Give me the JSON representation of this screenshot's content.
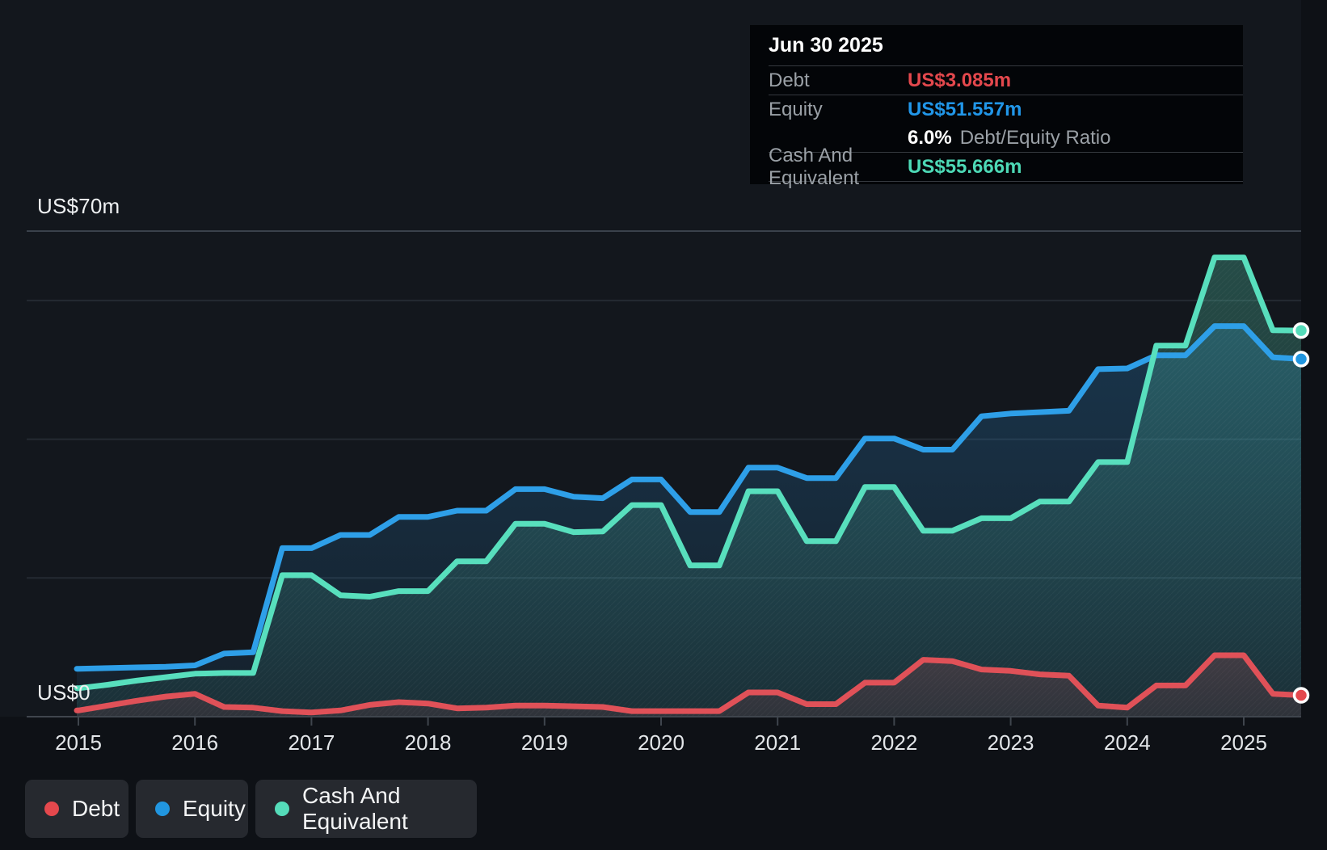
{
  "y_axis": {
    "top_label": "US$70m",
    "bottom_label": "US$0"
  },
  "tooltip": {
    "date": "Jun 30 2025",
    "debt_label": "Debt",
    "debt_value": "US$3.085m",
    "equity_label": "Equity",
    "equity_value": "US$51.557m",
    "ratio_value": "6.0%",
    "ratio_label": "Debt/Equity Ratio",
    "cash_label": "Cash And Equivalent",
    "cash_value": "US$55.666m"
  },
  "legend": {
    "debt_label": "Debt",
    "equity_label": "Equity",
    "cash_label": "Cash And Equivalent"
  },
  "colors": {
    "debt_line": "#e05158",
    "equity_line": "#2e9fe8",
    "cash_line": "#58dfbd",
    "debt_dot": "#e4484d",
    "equity_dot": "#2196e0",
    "cash_dot": "#55dcba",
    "grid_minor": "#242a32",
    "grid_top": "#3a414b",
    "axis": "#3f454d",
    "tick_label": "#e3e6e9"
  },
  "chart_data": {
    "type": "area",
    "title": "Debt to Equity history (US$ millions)",
    "x_unit": "year (quarterly samples, 2015.0 = Jan 2015, last point Jun 30 2025)",
    "ylim": [
      0,
      70
    ],
    "y_gridlines": [
      20,
      40,
      60,
      70
    ],
    "grid": true,
    "legend_position": "bottom-left",
    "x_ticks": [
      2015,
      2016,
      2017,
      2018,
      2019,
      2020,
      2021,
      2022,
      2023,
      2024,
      2025
    ],
    "x": [
      2015.0,
      2015.25,
      2015.5,
      2015.75,
      2016.0,
      2016.25,
      2016.5,
      2016.75,
      2017.0,
      2017.25,
      2017.5,
      2017.75,
      2018.0,
      2018.25,
      2018.5,
      2018.75,
      2019.0,
      2019.25,
      2019.5,
      2019.75,
      2020.0,
      2020.25,
      2020.5,
      2020.75,
      2021.0,
      2021.25,
      2021.5,
      2021.75,
      2022.0,
      2022.25,
      2022.5,
      2022.75,
      2023.0,
      2023.25,
      2023.5,
      2023.75,
      2024.0,
      2024.25,
      2024.5,
      2024.75,
      2025.0,
      2025.25,
      2025.5
    ],
    "series": [
      {
        "name": "Equity",
        "values": [
          6.9,
          7.0,
          7.1,
          7.2,
          7.4,
          9.1,
          9.3,
          24.3,
          24.3,
          26.2,
          26.2,
          28.8,
          28.8,
          29.7,
          29.7,
          32.8,
          32.8,
          31.7,
          31.5,
          34.2,
          34.2,
          29.5,
          29.5,
          35.9,
          35.9,
          34.4,
          34.4,
          40.1,
          40.1,
          38.5,
          38.5,
          43.3,
          43.7,
          43.9,
          44.1,
          50.1,
          50.2,
          52.1,
          52.1,
          56.3,
          56.3,
          51.8,
          51.557
        ]
      },
      {
        "name": "Cash And Equivalent",
        "values": [
          4.1,
          4.6,
          5.2,
          5.7,
          6.2,
          6.3,
          6.3,
          20.4,
          20.4,
          17.5,
          17.3,
          18.1,
          18.1,
          22.4,
          22.4,
          27.8,
          27.8,
          26.6,
          26.7,
          30.5,
          30.5,
          21.8,
          21.8,
          32.5,
          32.5,
          25.3,
          25.3,
          33.1,
          33.1,
          26.8,
          26.8,
          28.6,
          28.6,
          31.0,
          31.0,
          36.7,
          36.7,
          53.5,
          53.5,
          66.2,
          66.2,
          55.7,
          55.666
        ]
      },
      {
        "name": "Debt",
        "values": [
          0.9,
          1.6,
          2.3,
          2.9,
          3.3,
          1.4,
          1.3,
          0.8,
          0.6,
          0.9,
          1.7,
          2.1,
          1.9,
          1.2,
          1.3,
          1.6,
          1.6,
          1.5,
          1.4,
          0.8,
          0.8,
          0.8,
          0.8,
          3.5,
          3.5,
          1.8,
          1.8,
          4.9,
          4.9,
          8.2,
          8.0,
          6.8,
          6.6,
          6.1,
          5.9,
          1.6,
          1.3,
          4.5,
          4.5,
          8.85,
          8.85,
          3.3,
          3.085
        ]
      }
    ],
    "end_markers": [
      {
        "series": "Cash And Equivalent",
        "x": 2025.5,
        "value": 55.666
      },
      {
        "series": "Equity",
        "x": 2025.5,
        "value": 51.557
      },
      {
        "series": "Debt",
        "x": 2025.5,
        "value": 3.085
      }
    ]
  }
}
